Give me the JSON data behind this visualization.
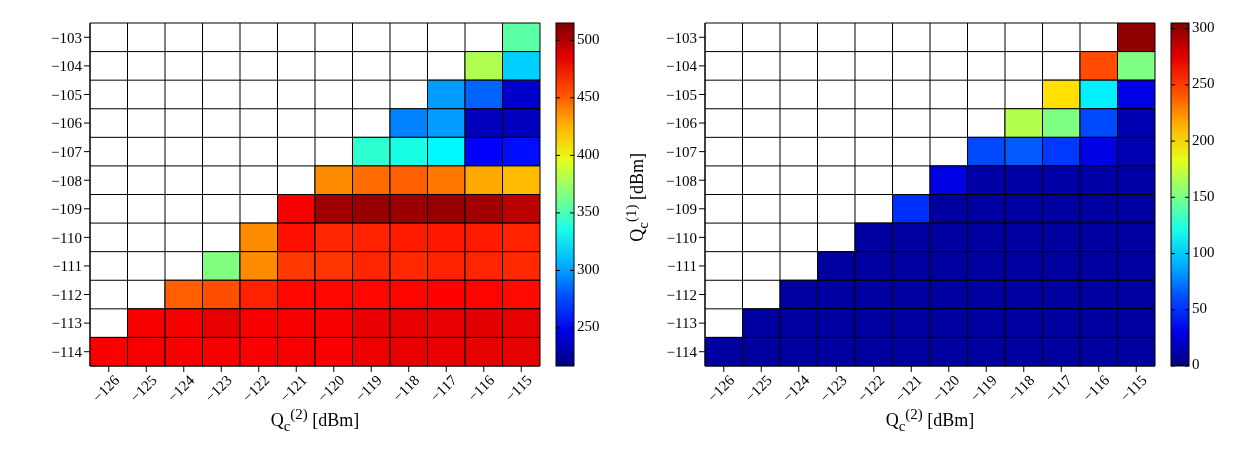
{
  "chart_data": [
    {
      "type": "heatmap",
      "xlabel": "Q$_{c}$$^{(2)}$ [dBm]",
      "categories": [
        "−126",
        "−125",
        "−124",
        "−123",
        "−122",
        "−121",
        "−120",
        "−119",
        "−118",
        "−117",
        "−116",
        "−115"
      ],
      "y_categories": [
        "−103",
        "−104",
        "−105",
        "−106",
        "−107",
        "−108",
        "−109",
        "−110",
        "−111",
        "−112",
        "−113",
        "−114"
      ],
      "grid": true,
      "clim": [
        217,
        515
      ],
      "cticks": [
        250,
        300,
        350,
        400,
        450,
        500
      ],
      "cells": [
        [
          null,
          null,
          null,
          null,
          null,
          null,
          null,
          null,
          null,
          null,
          null,
          355
        ],
        [
          null,
          null,
          null,
          null,
          null,
          null,
          null,
          null,
          null,
          null,
          380,
          315
        ],
        [
          null,
          null,
          null,
          null,
          null,
          null,
          null,
          null,
          null,
          300,
          283,
          240
        ],
        [
          null,
          null,
          null,
          null,
          null,
          null,
          null,
          null,
          292,
          300,
          235,
          235
        ],
        [
          null,
          null,
          null,
          null,
          null,
          null,
          null,
          342,
          336,
          327,
          253,
          258
        ],
        [
          null,
          null,
          null,
          null,
          null,
          null,
          437,
          446,
          450,
          443,
          428,
          423
        ],
        [
          null,
          null,
          null,
          null,
          null,
          480,
          506,
          508,
          507,
          508,
          505,
          497
        ],
        [
          null,
          null,
          null,
          null,
          437,
          473,
          467,
          468,
          470,
          471,
          470,
          468
        ],
        [
          null,
          null,
          null,
          366,
          437,
          461,
          462,
          467,
          466,
          468,
          467,
          466
        ],
        [
          null,
          null,
          450,
          455,
          468,
          476,
          476,
          476,
          477,
          478,
          477,
          475
        ],
        [
          null,
          480,
          480,
          485,
          480,
          480,
          480,
          484,
          485,
          485,
          486,
          485
        ],
        [
          479,
          480,
          480,
          480,
          479,
          480,
          479,
          483,
          484,
          484,
          485,
          485
        ]
      ]
    },
    {
      "type": "heatmap",
      "xlabel": "Q$_{c}$$^{(2)}$ [dBm]",
      "ylabel": "Q$_{c}$$^{(1)}$ [dBm]",
      "categories": [
        "−126",
        "−125",
        "−124",
        "−123",
        "−122",
        "−121",
        "−120",
        "−119",
        "−118",
        "−117",
        "−116",
        "−115"
      ],
      "y_categories": [
        "−103",
        "−104",
        "−105",
        "−106",
        "−107",
        "−108",
        "−109",
        "−110",
        "−111",
        "−112",
        "−113",
        "−114"
      ],
      "grid": true,
      "clim": [
        0,
        305
      ],
      "cticks": [
        0,
        50,
        100,
        150,
        200,
        250,
        300
      ],
      "cells": [
        [
          null,
          null,
          null,
          null,
          null,
          null,
          null,
          null,
          null,
          null,
          null,
          300
        ],
        [
          null,
          null,
          null,
          null,
          null,
          null,
          null,
          null,
          null,
          null,
          244,
          152
        ],
        [
          null,
          null,
          null,
          null,
          null,
          null,
          null,
          null,
          null,
          200,
          110,
          30
        ],
        [
          null,
          null,
          null,
          null,
          null,
          null,
          null,
          null,
          168,
          152,
          60,
          15
        ],
        [
          null,
          null,
          null,
          null,
          null,
          null,
          null,
          60,
          65,
          55,
          30,
          15
        ],
        [
          null,
          null,
          null,
          null,
          null,
          null,
          30,
          12,
          12,
          12,
          12,
          12
        ],
        [
          null,
          null,
          null,
          null,
          null,
          52,
          10,
          10,
          10,
          10,
          10,
          10
        ],
        [
          null,
          null,
          null,
          null,
          10,
          10,
          10,
          10,
          10,
          10,
          10,
          10
        ],
        [
          null,
          null,
          null,
          10,
          10,
          10,
          10,
          10,
          10,
          10,
          10,
          10
        ],
        [
          null,
          null,
          10,
          10,
          10,
          10,
          10,
          10,
          10,
          10,
          10,
          10
        ],
        [
          null,
          10,
          10,
          10,
          10,
          10,
          10,
          10,
          10,
          10,
          10,
          10
        ],
        [
          10,
          10,
          10,
          10,
          10,
          10,
          10,
          10,
          10,
          10,
          10,
          10
        ]
      ]
    }
  ]
}
